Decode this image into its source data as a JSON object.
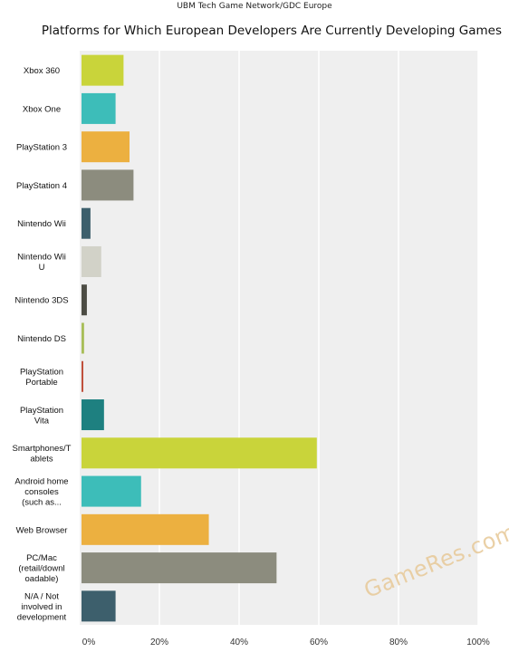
{
  "source_note": "UBM Tech Game Network/GDC Europe",
  "chart_data": {
    "type": "bar",
    "orientation": "horizontal",
    "title": "Platforms for Which European Developers Are Currently Developing Games",
    "xlabel": "",
    "ylabel": "",
    "xlim": [
      0,
      100
    ],
    "ticks": [
      "0%",
      "20%",
      "40%",
      "60%",
      "80%",
      "100%"
    ],
    "tick_values": [
      0,
      20,
      40,
      60,
      80,
      100
    ],
    "grid": true,
    "categories": [
      {
        "lines": [
          "Xbox 360"
        ],
        "value": 11,
        "color": "#c9d43a"
      },
      {
        "lines": [
          "Xbox One"
        ],
        "value": 9,
        "color": "#3dbdb9"
      },
      {
        "lines": [
          "PlayStation 3"
        ],
        "value": 12.5,
        "color": "#ecb040"
      },
      {
        "lines": [
          "PlayStation 4"
        ],
        "value": 13.5,
        "color": "#8c8c7e"
      },
      {
        "lines": [
          "Nintendo Wii"
        ],
        "value": 2.7,
        "color": "#3d5f6c"
      },
      {
        "lines": [
          "Nintendo Wii",
          "U"
        ],
        "value": 5.4,
        "color": "#d2d2c8"
      },
      {
        "lines": [
          "Nintendo 3DS"
        ],
        "value": 1.8,
        "color": "#4c4c44"
      },
      {
        "lines": [
          "Nintendo DS"
        ],
        "value": 1.1,
        "color": "#a8be58"
      },
      {
        "lines": [
          "PlayStation",
          "Portable"
        ],
        "value": 0.6,
        "color": "#c0503c"
      },
      {
        "lines": [
          "PlayStation",
          "Vita"
        ],
        "value": 6.1,
        "color": "#1e8080"
      },
      {
        "lines": [
          "Smartphones/T",
          "ablets"
        ],
        "value": 59.5,
        "color": "#c9d43a"
      },
      {
        "lines": [
          "Android home",
          "consoles",
          "(such as..."
        ],
        "value": 15.4,
        "color": "#3dbdb9"
      },
      {
        "lines": [
          "Web Browser"
        ],
        "value": 32.4,
        "color": "#ecb040"
      },
      {
        "lines": [
          "PC/Mac",
          "(retail/downl",
          "oadable)"
        ],
        "value": 49.4,
        "color": "#8c8c7e"
      },
      {
        "lines": [
          "N/A / Not",
          "involved in",
          "development"
        ],
        "value": 9,
        "color": "#3d5f6c"
      }
    ]
  },
  "watermark": "GameRes.com",
  "colors": {
    "plot_background": "#efefef",
    "grid": "#ffffff"
  }
}
